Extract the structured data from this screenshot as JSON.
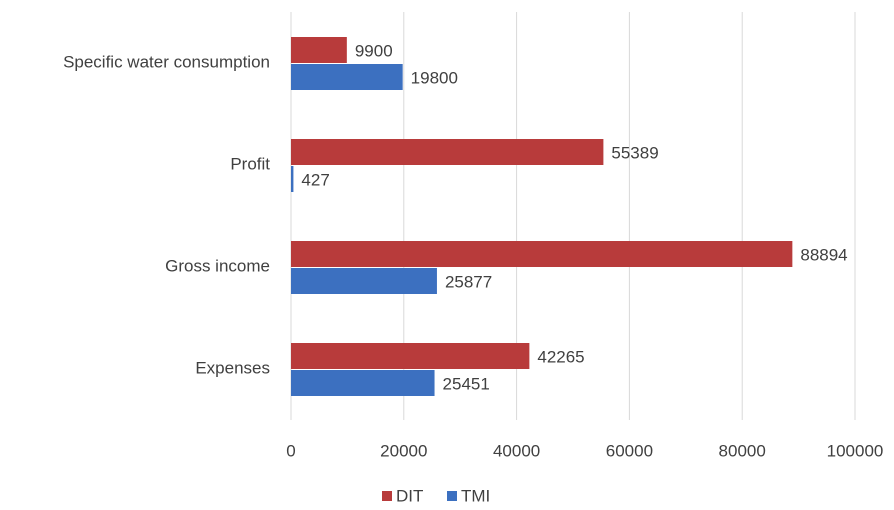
{
  "chart_data": {
    "type": "hbar",
    "categories": [
      "Specific water consumption",
      "Profit",
      "Gross income",
      "Expenses"
    ],
    "series": [
      {
        "name": "DIT",
        "color": "#b83b3b",
        "values": [
          9900,
          55389,
          88894,
          42265
        ]
      },
      {
        "name": "TMI",
        "color": "#3c70c0",
        "values": [
          19800,
          427,
          25877,
          25451
        ]
      }
    ],
    "xlim": [
      0,
      100000
    ],
    "xticks": [
      0,
      20000,
      40000,
      60000,
      80000,
      100000
    ],
    "grid": true,
    "legend": "bottom"
  }
}
